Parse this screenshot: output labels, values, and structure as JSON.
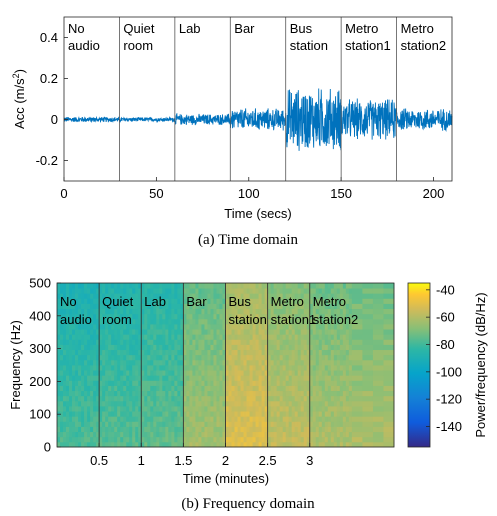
{
  "chart_data": [
    {
      "type": "line",
      "title": "",
      "xlabel": "Time (secs)",
      "ylabel": "Acc (m/s²)",
      "ylabel_base": "Acc (m/s",
      "ylabel_sup": "2",
      "ylabel_close": ")",
      "xlim": [
        0,
        210
      ],
      "ylim": [
        -0.3,
        0.5
      ],
      "xticks": [
        0,
        50,
        100,
        150,
        200
      ],
      "yticks": [
        -0.2,
        0,
        0.2,
        0.4
      ],
      "ytick_labels": [
        "-0.2",
        "0",
        "0.2",
        "0.4"
      ],
      "series_color": "#0072BD",
      "segment_bounds": [
        0,
        30,
        60,
        90,
        120,
        150,
        180,
        210
      ],
      "segments": [
        {
          "label_lines": [
            "No",
            "audio"
          ],
          "amplitude": 0.015
        },
        {
          "label_lines": [
            "Quiet",
            "room"
          ],
          "amplitude": 0.012
        },
        {
          "label_lines": [
            "Lab"
          ],
          "amplitude": 0.03
        },
        {
          "label_lines": [
            "Bar"
          ],
          "amplitude": 0.06
        },
        {
          "label_lines": [
            "Bus",
            "station"
          ],
          "amplitude": 0.17
        },
        {
          "label_lines": [
            "Metro",
            "station1"
          ],
          "amplitude": 0.11
        },
        {
          "label_lines": [
            "Metro",
            "station2"
          ],
          "amplitude": 0.06
        }
      ],
      "caption": "(a)  Time domain"
    },
    {
      "type": "heatmap",
      "title": "",
      "xlabel": "Time (minutes)",
      "ylabel": "Frequency (Hz)",
      "xlim": [
        0,
        4
      ],
      "ylim": [
        0,
        500
      ],
      "xticks": [
        0.5,
        1,
        1.5,
        2,
        2.5,
        3
      ],
      "xtick_labels": [
        "0.5",
        "1",
        "1.5",
        "2",
        "2.5",
        "3"
      ],
      "yticks": [
        0,
        100,
        200,
        300,
        400,
        500
      ],
      "colorbar_label": "Power/frequency (dB/Hz)",
      "colorbar_range": [
        -155,
        -35
      ],
      "colorbar_ticks": [
        -140,
        -120,
        -100,
        -80,
        -60,
        -40
      ],
      "colorbar_tick_labels": [
        "-140",
        "-120",
        "-100",
        "-80",
        "-60",
        "-40"
      ],
      "segment_bounds": [
        0,
        0.5,
        1,
        1.5,
        2,
        2.5,
        3,
        3.5
      ],
      "segments": [
        {
          "label_lines": [
            "No",
            "audio"
          ],
          "power_db": -82
        },
        {
          "label_lines": [
            "Quiet",
            "room"
          ],
          "power_db": -80
        },
        {
          "label_lines": [
            "Lab"
          ],
          "power_db": -78
        },
        {
          "label_lines": [
            "Bar"
          ],
          "power_db": -67
        },
        {
          "label_lines": [
            "Bus",
            "station"
          ],
          "power_db": -55
        },
        {
          "label_lines": [
            "Metro",
            "station1"
          ],
          "power_db": -61
        },
        {
          "label_lines": [
            "Metro",
            "station2"
          ],
          "power_db": -65
        }
      ],
      "caption": "(b)  Frequency domain"
    }
  ]
}
